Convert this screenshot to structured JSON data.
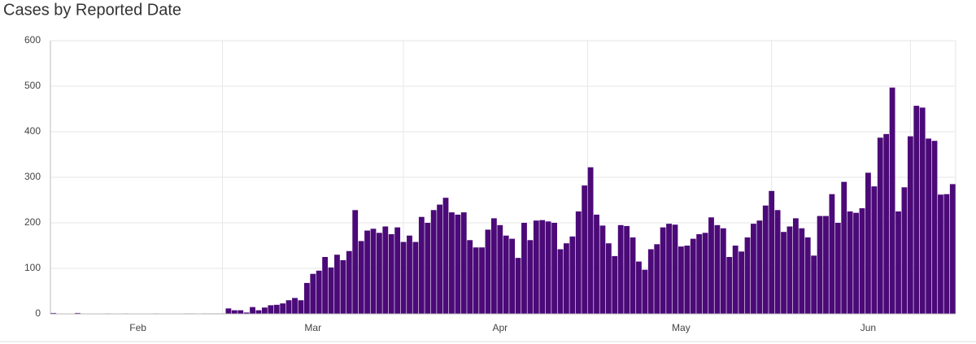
{
  "chart_data": {
    "type": "bar",
    "title": "Cases by Reported Date",
    "categories": [
      null,
      null,
      null,
      null,
      null,
      null,
      null,
      null,
      null,
      null,
      null,
      null,
      null,
      null,
      "Feb",
      null,
      null,
      null,
      null,
      null,
      null,
      null,
      null,
      null,
      null,
      null,
      null,
      null,
      null,
      null,
      null,
      null,
      null,
      null,
      null,
      null,
      null,
      null,
      null,
      null,
      null,
      null,
      null,
      "Mar",
      null,
      null,
      null,
      null,
      null,
      null,
      null,
      null,
      null,
      null,
      null,
      null,
      null,
      null,
      null,
      null,
      null,
      null,
      null,
      null,
      null,
      null,
      null,
      null,
      null,
      null,
      null,
      null,
      null,
      null,
      "Apr",
      null,
      null,
      null,
      null,
      null,
      null,
      null,
      null,
      null,
      null,
      null,
      null,
      null,
      null,
      null,
      null,
      null,
      null,
      null,
      null,
      null,
      null,
      null,
      null,
      null,
      null,
      null,
      null,
      null,
      "May",
      null,
      null,
      null,
      null,
      null,
      null,
      null,
      null,
      null,
      null,
      null,
      null,
      null,
      null,
      null,
      null,
      null,
      null,
      null,
      null,
      null,
      null,
      null,
      null,
      null,
      null,
      null,
      null,
      null,
      null,
      "Jun",
      null,
      null,
      null,
      null,
      null,
      null,
      null,
      null,
      null,
      null,
      null,
      null,
      null,
      null
    ],
    "values": [
      2,
      0,
      0,
      0,
      2,
      0,
      0,
      0,
      0,
      1,
      0,
      0,
      1,
      0,
      0,
      0,
      0,
      1,
      0,
      0,
      0,
      0,
      1,
      1,
      0,
      1,
      1,
      1,
      1,
      12,
      8,
      8,
      3,
      15,
      8,
      14,
      19,
      20,
      23,
      30,
      35,
      30,
      68,
      88,
      95,
      125,
      102,
      130,
      118,
      138,
      228,
      160,
      183,
      187,
      178,
      192,
      175,
      190,
      158,
      172,
      158,
      213,
      200,
      228,
      240,
      255,
      223,
      218,
      223,
      162,
      146,
      146,
      185,
      210,
      195,
      172,
      165,
      123,
      200,
      162,
      205,
      206,
      203,
      200,
      142,
      155,
      170,
      225,
      282,
      322,
      218,
      194,
      155,
      127,
      195,
      193,
      168,
      115,
      97,
      142,
      153,
      190,
      198,
      196,
      148,
      150,
      165,
      175,
      178,
      212,
      195,
      188,
      125,
      150,
      137,
      168,
      198,
      205,
      238,
      270,
      228,
      180,
      192,
      210,
      188,
      168,
      128,
      215,
      215,
      263,
      200,
      290,
      225,
      222,
      232,
      310,
      280,
      387,
      395,
      497,
      225,
      278,
      390,
      457,
      453,
      385,
      380,
      262,
      263,
      285
    ],
    "color": "#4b0a78",
    "ylim": [
      0,
      600
    ],
    "yticks": [
      0,
      100,
      200,
      300,
      400,
      500,
      600
    ],
    "grid": true
  }
}
